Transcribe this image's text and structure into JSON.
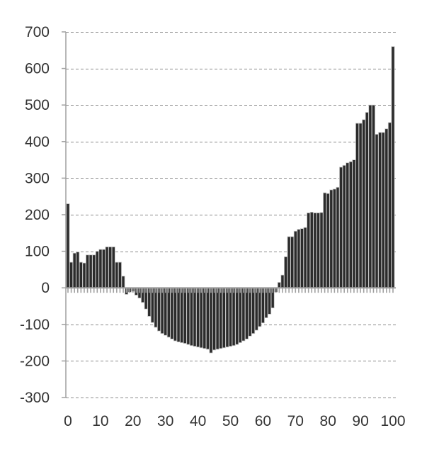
{
  "colors": {
    "bar_fill": "#2b2b2b",
    "bar_edge": "#c8c8c8",
    "grid": "#8a8a8a",
    "axis": "#a0a0a0",
    "zero_ticks": "#a0a0a0",
    "text": "#333333"
  },
  "chart_data": {
    "type": "bar",
    "title": "",
    "xlabel": "",
    "ylabel": "",
    "xlim": [
      0,
      100
    ],
    "ylim": [
      -300,
      700
    ],
    "grid": "horizontal dashed",
    "x_ticks": [
      0,
      10,
      20,
      30,
      40,
      50,
      60,
      70,
      80,
      90,
      100
    ],
    "y_ticks": [
      -300,
      -200,
      -100,
      0,
      100,
      200,
      300,
      400,
      500,
      600,
      700
    ],
    "x_tick_labels": [
      "0",
      "10",
      "20",
      "30",
      "40",
      "50",
      "60",
      "70",
      "80",
      "90",
      "100"
    ],
    "y_tick_labels": [
      "-300",
      "-200",
      "-100",
      "0",
      "100",
      "200",
      "300",
      "400",
      "500",
      "600",
      "700"
    ],
    "x": [
      0,
      1,
      2,
      3,
      4,
      5,
      6,
      7,
      8,
      9,
      10,
      11,
      12,
      13,
      14,
      15,
      16,
      17,
      18,
      19,
      20,
      21,
      22,
      23,
      24,
      25,
      26,
      27,
      28,
      29,
      30,
      31,
      32,
      33,
      34,
      35,
      36,
      37,
      38,
      39,
      40,
      41,
      42,
      43,
      44,
      45,
      46,
      47,
      48,
      49,
      50,
      51,
      52,
      53,
      54,
      55,
      56,
      57,
      58,
      59,
      60,
      61,
      62,
      63,
      64,
      65,
      66,
      67,
      68,
      69,
      70,
      71,
      72,
      73,
      74,
      75,
      76,
      77,
      78,
      79,
      80,
      81,
      82,
      83,
      84,
      85,
      86,
      87,
      88,
      89,
      90,
      91,
      92,
      93,
      94,
      95,
      96,
      97,
      98,
      99,
      100
    ],
    "values": [
      230,
      70,
      95,
      98,
      70,
      68,
      90,
      90,
      90,
      100,
      105,
      105,
      112,
      112,
      112,
      70,
      70,
      32,
      -18,
      -12,
      -10,
      -20,
      -28,
      -40,
      -58,
      -78,
      -95,
      -108,
      -118,
      -125,
      -130,
      -135,
      -140,
      -145,
      -148,
      -150,
      -152,
      -155,
      -158,
      -160,
      -162,
      -164,
      -166,
      -168,
      -178,
      -170,
      -168,
      -166,
      -164,
      -162,
      -160,
      -158,
      -155,
      -150,
      -145,
      -140,
      -132,
      -125,
      -116,
      -106,
      -96,
      -82,
      -72,
      -55,
      -12,
      15,
      35,
      85,
      140,
      140,
      155,
      160,
      162,
      165,
      205,
      207,
      205,
      205,
      206,
      260,
      258,
      268,
      270,
      275,
      330,
      335,
      342,
      345,
      350,
      450,
      450,
      460,
      480,
      500,
      500,
      420,
      425,
      425,
      435,
      452,
      660
    ]
  }
}
